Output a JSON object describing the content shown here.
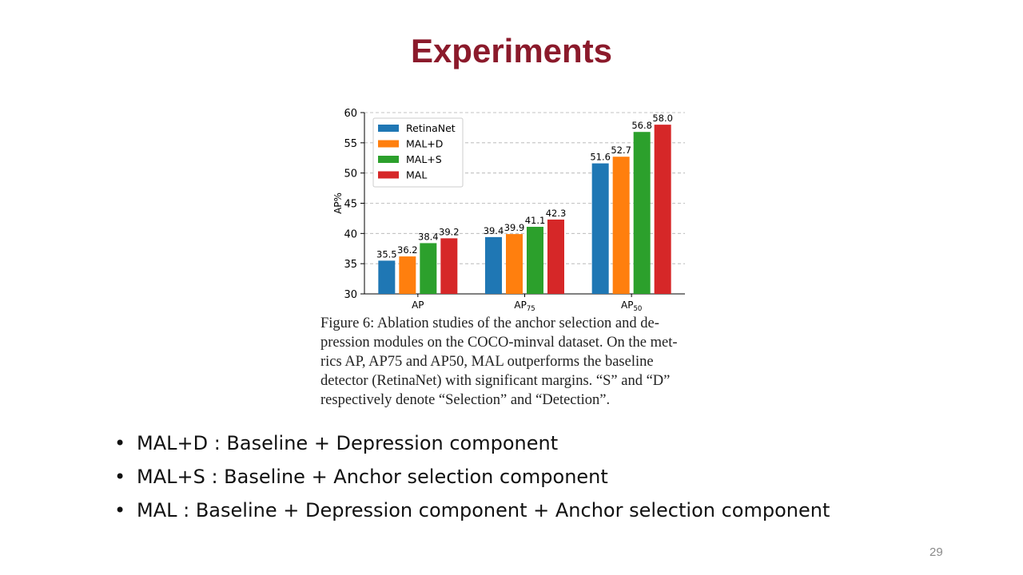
{
  "slide": {
    "title": "Experiments",
    "page_number": "29",
    "title_color": "#8b1a2b"
  },
  "figure": {
    "caption_lines": [
      "Figure 6: Ablation studies of the anchor selection and de-",
      "pression modules on the COCO-minval dataset. On the met-",
      "rics AP, AP75 and AP50, MAL outperforms the baseline",
      "detector (RetinaNet) with significant margins. “S” and “D”",
      "respectively denote “Selection” and “Detection”."
    ]
  },
  "bullets": [
    "MAL+D : Baseline + Depression component",
    "MAL+S : Baseline + Anchor selection component",
    "MAL : Baseline + Depression component + Anchor selection component"
  ],
  "chart_data": {
    "type": "bar",
    "categories": [
      "AP",
      "AP75",
      "AP50"
    ],
    "category_labels": [
      {
        "main": "AP",
        "sub": ""
      },
      {
        "main": "AP",
        "sub": "75"
      },
      {
        "main": "AP",
        "sub": "50"
      }
    ],
    "series": [
      {
        "name": "RetinaNet",
        "values": [
          35.5,
          39.4,
          51.6
        ],
        "color": "#1f77b4"
      },
      {
        "name": "MAL+D",
        "values": [
          36.2,
          39.9,
          52.7
        ],
        "color": "#ff7f0e"
      },
      {
        "name": "MAL+S",
        "values": [
          38.4,
          41.1,
          56.8
        ],
        "color": "#2ca02c"
      },
      {
        "name": "MAL",
        "values": [
          39.2,
          42.3,
          58.0
        ],
        "color": "#d62728"
      }
    ],
    "ylabel": "AP%",
    "xlabel": "",
    "ylim": [
      30,
      60
    ],
    "yticks": [
      30,
      35,
      40,
      45,
      50,
      55,
      60
    ],
    "grid": true,
    "legend_position": "top-left"
  }
}
